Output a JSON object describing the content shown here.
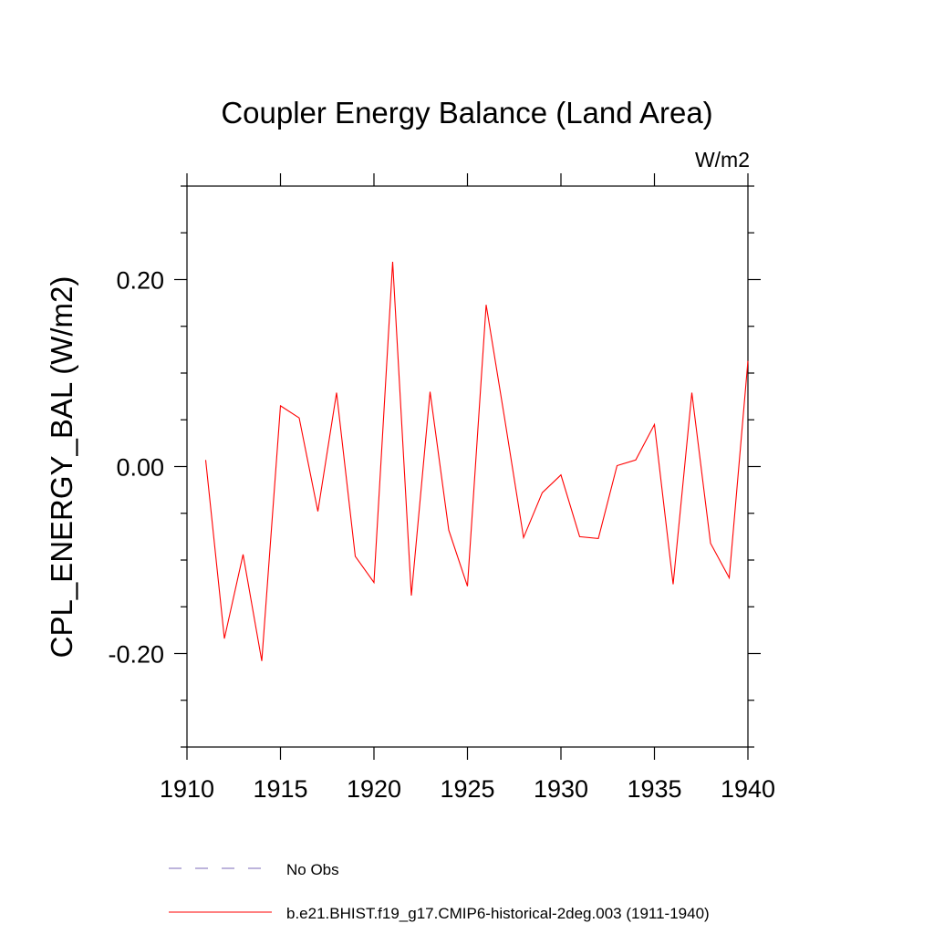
{
  "chart_data": {
    "type": "line",
    "title": "Coupler Energy Balance (Land Area)",
    "units_label": "W/m2",
    "ylabel": "CPL_ENERGY_BAL  (W/m2)",
    "xlabel": "",
    "xlim": [
      1910,
      1940
    ],
    "ylim": [
      -0.3,
      0.3
    ],
    "x_ticks": [
      1910,
      1915,
      1920,
      1925,
      1930,
      1935,
      1940
    ],
    "x_tick_labels": [
      "1910",
      "1915",
      "1920",
      "1925",
      "1930",
      "1935",
      "1940"
    ],
    "y_ticks": [
      -0.2,
      0.0,
      0.2
    ],
    "y_tick_labels": [
      "-0.20",
      "0.00",
      "0.20"
    ],
    "grid": false,
    "legend_position": "bottom",
    "series": [
      {
        "name": "b.e21.BHIST.f19_g17.CMIP6-historical-2deg.003 (1911-1940)",
        "color": "#ff0000",
        "style": "solid",
        "x": [
          1911,
          1912,
          1913,
          1914,
          1915,
          1916,
          1917,
          1918,
          1919,
          1920,
          1921,
          1922,
          1923,
          1924,
          1925,
          1926,
          1927,
          1928,
          1929,
          1930,
          1931,
          1932,
          1933,
          1934,
          1935,
          1936,
          1937,
          1938,
          1939,
          1940
        ],
        "values": [
          0.007,
          -0.184,
          -0.094,
          -0.208,
          0.065,
          0.052,
          -0.048,
          0.079,
          -0.096,
          -0.124,
          0.219,
          -0.138,
          0.08,
          -0.068,
          -0.128,
          0.173,
          0.05,
          -0.076,
          -0.028,
          -0.009,
          -0.075,
          -0.077,
          0.001,
          0.007,
          0.045,
          -0.126,
          0.079,
          -0.082,
          -0.119,
          0.113
        ]
      }
    ],
    "legend": [
      {
        "label": "No Obs",
        "color": "#7b68b8",
        "style": "dashed"
      },
      {
        "label": "b.e21.BHIST.f19_g17.CMIP6-historical-2deg.003 (1911-1940)",
        "color": "#ff0000",
        "style": "solid"
      }
    ]
  }
}
